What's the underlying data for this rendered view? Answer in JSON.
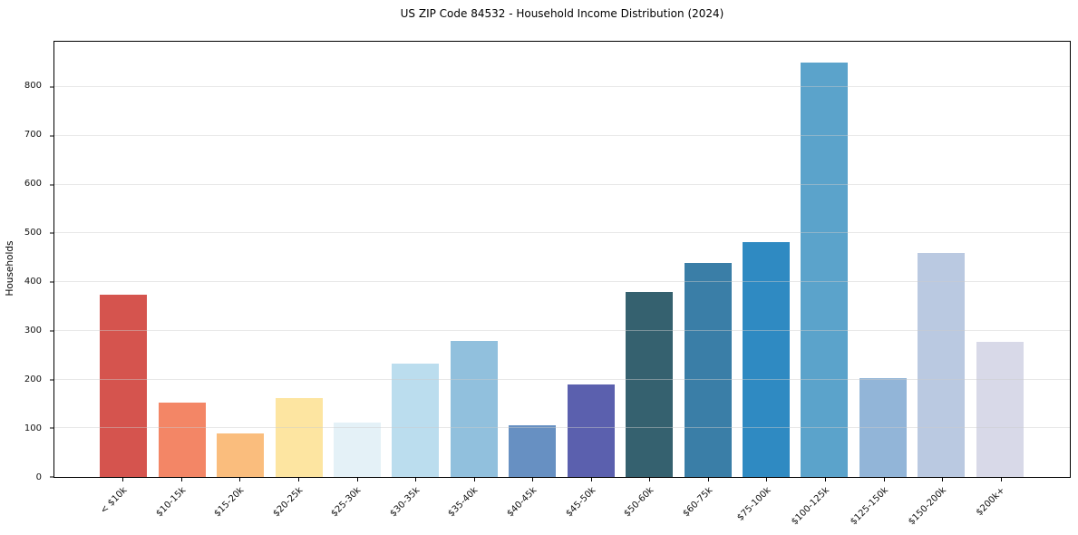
{
  "page": {
    "title": "US ZIP Code 84532 - Household Income Distribution (2024)"
  },
  "chart_data": {
    "type": "bar",
    "title": "US ZIP Code 84532 - Household Income Distribution (2024)",
    "xlabel": "",
    "ylabel": "Households",
    "categories": [
      "< $10k",
      "$10-15k",
      "$15-20k",
      "$20-25k",
      "$25-30k",
      "$30-35k",
      "$35-40k",
      "$40-45k",
      "$45-50k",
      "$50-60k",
      "$60-75k",
      "$75-100k",
      "$100-125k",
      "$125-150k",
      "$150-200k",
      "$200k+"
    ],
    "values": [
      374,
      153,
      90,
      162,
      112,
      232,
      280,
      106,
      190,
      379,
      440,
      482,
      851,
      203,
      460,
      277
    ],
    "bar_colors": [
      "#d5544e",
      "#f38666",
      "#fabd7d",
      "#fde5a1",
      "#e4f1f7",
      "#bbddee",
      "#91c0dd",
      "#6790c2",
      "#5b60ae",
      "#35616f",
      "#3a7ea7",
      "#2f8ac2",
      "#5ba3cb",
      "#92b5d8",
      "#bac9e1",
      "#d8d9e8"
    ],
    "yticks": [
      0,
      100,
      200,
      300,
      400,
      500,
      600,
      700,
      800
    ],
    "ylim": [
      0,
      893
    ],
    "grid": "horizontal",
    "grid_color": "rgba(205,205,205,0.45)",
    "legend": "none",
    "background": "#ffffff",
    "axis_color": "#000000",
    "x_tick_rotation_deg": 45
  }
}
